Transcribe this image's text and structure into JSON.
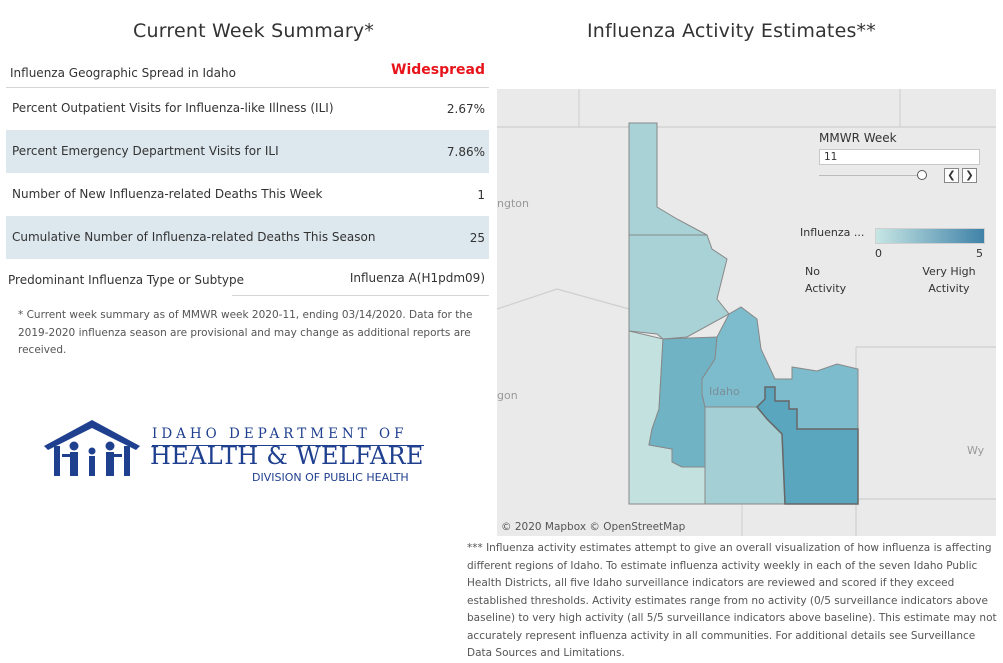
{
  "summary": {
    "title": "Current Week Summary*",
    "spread_label": "Influenza Geographic Spread in Idaho",
    "spread_value": "Widespread",
    "rows": [
      {
        "label": "Percent Outpatient Visits for Influenza-like Illness (ILI)",
        "value": "2.67%"
      },
      {
        "label": "Percent Emergency Department Visits for ILI",
        "value": "7.86%"
      },
      {
        "label": "Number of New Influenza-related Deaths This Week",
        "value": "1"
      },
      {
        "label": "Cumulative Number of Influenza-related Deaths This Season",
        "value": "25"
      }
    ],
    "predominant_label": "Predominant Influenza Type or Subtype",
    "predominant_value": "Influenza A(H1pdm09)",
    "footnote": "* Current week summary as of MMWR week 2020-11, ending 03/14/2020. Data for the 2019-2020 influenza season are provisional and may change as additional reports are received."
  },
  "logo": {
    "line1": "IDAHO DEPARTMENT OF",
    "line2": "HEALTH & WELFARE",
    "line3": "DIVISION OF PUBLIC HEALTH",
    "color": "#1f3f8f"
  },
  "map": {
    "title": "Influenza Activity Estimates**",
    "mmwr_label": "MMWR Week",
    "mmwr_value": "11",
    "legend_title": "Influenza ...",
    "legend_min": "0",
    "legend_max": "5",
    "legend_low_text": "No Activity",
    "legend_high_text": "Very High Activity",
    "place_labels": [
      "ngton",
      "gon",
      "Idaho",
      "Wy"
    ],
    "attribution": "© 2020 Mapbox  © OpenStreetMap",
    "district_colors": [
      "#a9d2d6",
      "#a9d2d6",
      "#c3e2df",
      "#6fb3c4",
      "#7dbccc",
      "#a4d0d5",
      "#5aa6be"
    ],
    "footnote": "*** Influenza activity estimates attempt to give an overall visualization of how influenza is affecting different regions of Idaho. To estimate influenza activity weekly in each of the seven Idaho Public Health Districts, all five Idaho surveillance indicators are reviewed and scored if they exceed established thresholds. Activity estimates range from no activity (0/5 surveillance indicators above baseline) to very high activity (all 5/5 surveillance indicators above baseline). This estimate may not accurately represent influenza activity in all communities. For additional details see Surveillance Data Sources and Limitations."
  }
}
